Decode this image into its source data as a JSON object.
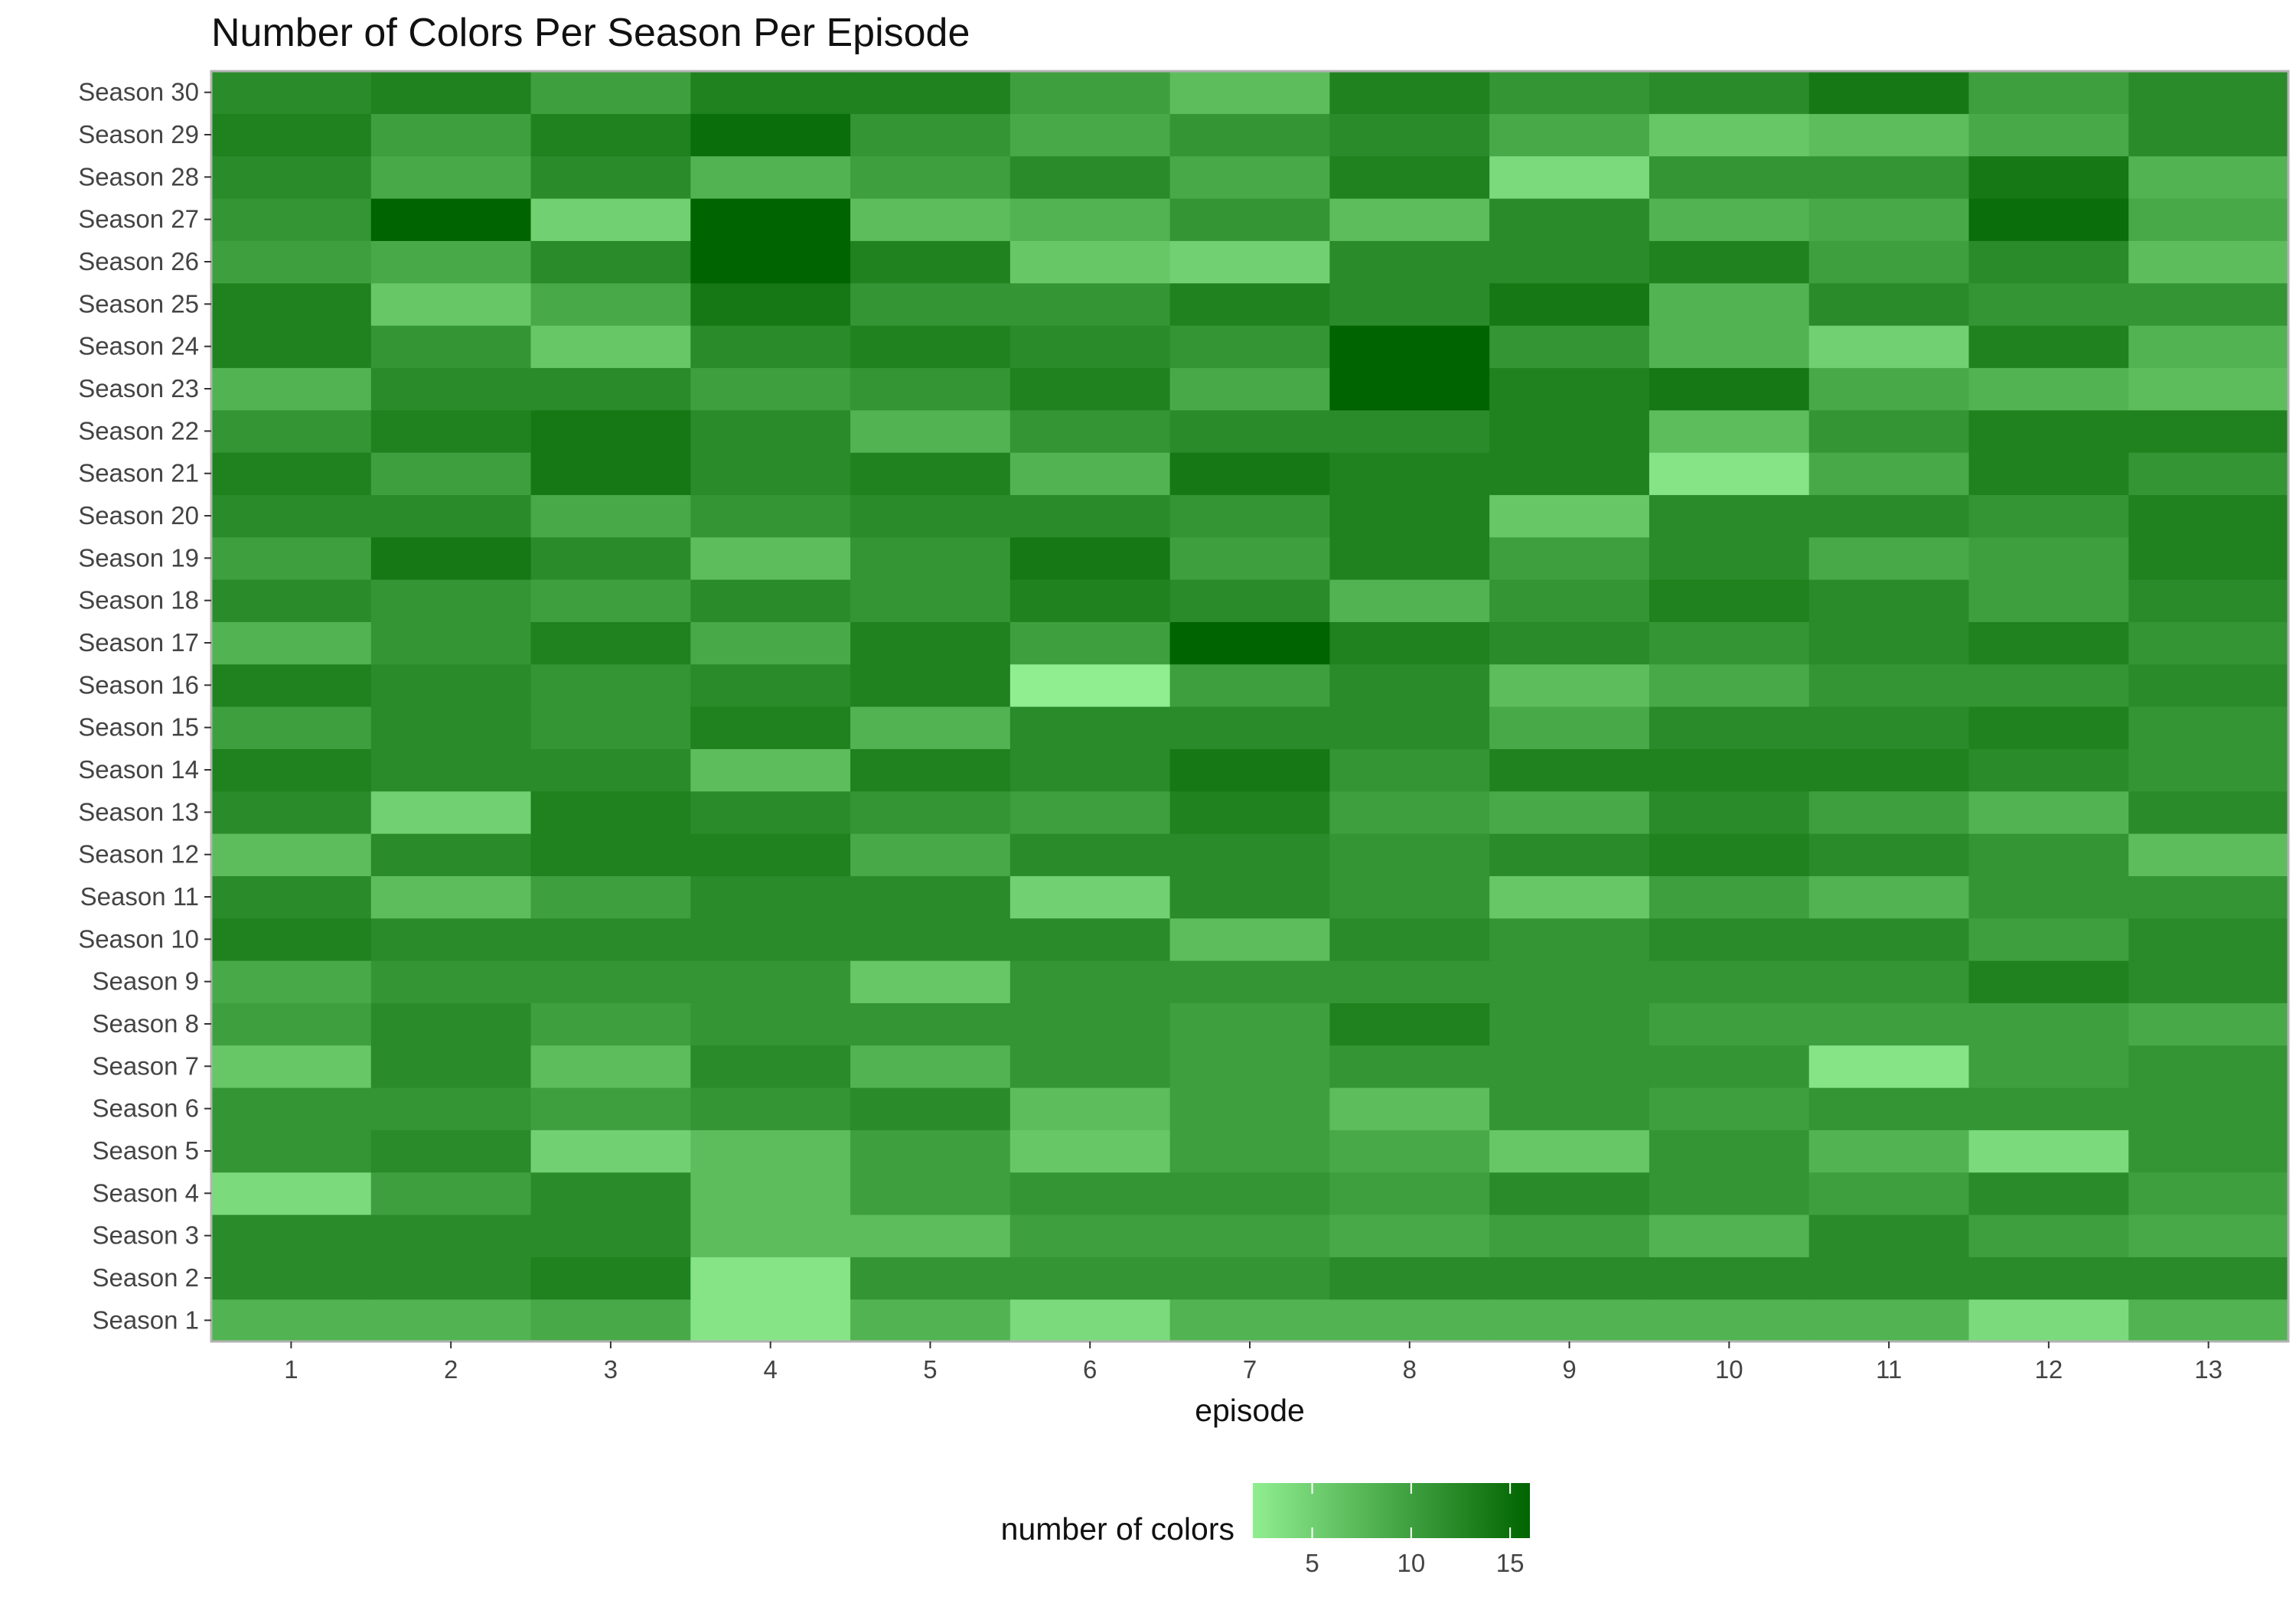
{
  "chart_data": {
    "type": "heatmap",
    "title": "Number of Colors Per Season Per Episode",
    "xlabel": "episode",
    "ylabel": "",
    "x": [
      "1",
      "2",
      "3",
      "4",
      "5",
      "6",
      "7",
      "8",
      "9",
      "10",
      "11",
      "12",
      "13"
    ],
    "y": [
      "Season 1",
      "Season 2",
      "Season 3",
      "Season 4",
      "Season 5",
      "Season 6",
      "Season 7",
      "Season 8",
      "Season 9",
      "Season 10",
      "Season 11",
      "Season 12",
      "Season 13",
      "Season 14",
      "Season 15",
      "Season 16",
      "Season 17",
      "Season 18",
      "Season 19",
      "Season 20",
      "Season 21",
      "Season 22",
      "Season 23",
      "Season 24",
      "Season 25",
      "Season 26",
      "Season 27",
      "Season 28",
      "Season 29",
      "Season 30"
    ],
    "values": [
      [
        8,
        8,
        9,
        3,
        8,
        4,
        8,
        8,
        8,
        8,
        8,
        4,
        8
      ],
      [
        12,
        12,
        13,
        3,
        11,
        11,
        11,
        12,
        12,
        12,
        12,
        12,
        12
      ],
      [
        12,
        12,
        12,
        7,
        7,
        10,
        10,
        9,
        10,
        8,
        12,
        10,
        9
      ],
      [
        4,
        10,
        12,
        7,
        10,
        11,
        11,
        10,
        12,
        11,
        10,
        12,
        10
      ],
      [
        11,
        12,
        5,
        7,
        10,
        6,
        10,
        9,
        6,
        11,
        8,
        4,
        11
      ],
      [
        11,
        11,
        10,
        11,
        12,
        7,
        10,
        7,
        11,
        10,
        11,
        11,
        11
      ],
      [
        6,
        12,
        7,
        12,
        8,
        11,
        10,
        11,
        11,
        11,
        3,
        10,
        11
      ],
      [
        10,
        12,
        10,
        11,
        11,
        11,
        10,
        13,
        11,
        10,
        10,
        10,
        9
      ],
      [
        9,
        11,
        11,
        11,
        6,
        11,
        11,
        11,
        11,
        11,
        11,
        13,
        12
      ],
      [
        13,
        12,
        12,
        12,
        12,
        12,
        7,
        12,
        11,
        12,
        12,
        10,
        12
      ],
      [
        12,
        7,
        10,
        12,
        12,
        5,
        12,
        11,
        6,
        10,
        8,
        11,
        11
      ],
      [
        7,
        12,
        13,
        13,
        9,
        12,
        12,
        11,
        12,
        13,
        12,
        11,
        7
      ],
      [
        12,
        5,
        13,
        12,
        11,
        10,
        13,
        10,
        9,
        12,
        10,
        8,
        12
      ],
      [
        13,
        12,
        12,
        7,
        13,
        12,
        14,
        11,
        13,
        13,
        13,
        12,
        11
      ],
      [
        10,
        12,
        11,
        13,
        8,
        12,
        12,
        12,
        9,
        12,
        12,
        13,
        11
      ],
      [
        13,
        12,
        11,
        12,
        13,
        2,
        10,
        12,
        7,
        9,
        11,
        11,
        12
      ],
      [
        8,
        11,
        13,
        9,
        13,
        10,
        16,
        13,
        12,
        11,
        12,
        13,
        11
      ],
      [
        12,
        11,
        10,
        12,
        11,
        13,
        12,
        8,
        11,
        13,
        12,
        10,
        12
      ],
      [
        10,
        14,
        12,
        7,
        11,
        14,
        10,
        13,
        10,
        12,
        9,
        10,
        13
      ],
      [
        12,
        12,
        9,
        11,
        12,
        12,
        11,
        13,
        6,
        12,
        12,
        11,
        13
      ],
      [
        13,
        10,
        14,
        12,
        13,
        8,
        14,
        13,
        13,
        3,
        9,
        13,
        11
      ],
      [
        11,
        13,
        14,
        12,
        8,
        11,
        12,
        12,
        13,
        7,
        11,
        13,
        13
      ],
      [
        8,
        12,
        12,
        10,
        11,
        13,
        9,
        16,
        13,
        14,
        9,
        8,
        7
      ],
      [
        13,
        11,
        6,
        12,
        13,
        12,
        11,
        16,
        11,
        8,
        5,
        13,
        8
      ],
      [
        13,
        6,
        9,
        14,
        11,
        11,
        13,
        12,
        14,
        8,
        12,
        11,
        11
      ],
      [
        10,
        9,
        12,
        16,
        13,
        6,
        5,
        12,
        12,
        13,
        10,
        12,
        7
      ],
      [
        11,
        16,
        5,
        16,
        7,
        8,
        11,
        7,
        12,
        8,
        9,
        15,
        9
      ],
      [
        12,
        9,
        12,
        8,
        10,
        12,
        9,
        13,
        4,
        11,
        11,
        14,
        8
      ],
      [
        13,
        10,
        13,
        15,
        11,
        9,
        11,
        12,
        9,
        6,
        7,
        9,
        12
      ],
      [
        12,
        13,
        10,
        13,
        13,
        10,
        7,
        13,
        11,
        12,
        14,
        10,
        12
      ]
    ],
    "colorbar": {
      "title": "number of colors",
      "min": 2,
      "max": 16,
      "ticks": [
        5,
        10,
        15
      ],
      "low_color": "#90EE90",
      "high_color": "#006400"
    },
    "legend_position": "bottom",
    "grid": true
  }
}
